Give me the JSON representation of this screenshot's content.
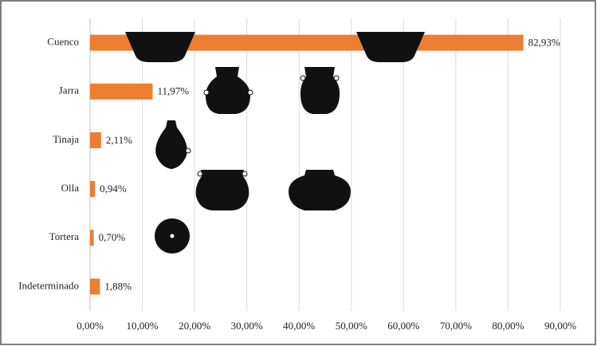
{
  "chart_data": {
    "type": "bar",
    "orientation": "horizontal",
    "categories": [
      "Cuenco",
      "Jarra",
      "Tinaja",
      "Olla",
      "Tortera",
      "Indeterminado"
    ],
    "values": [
      82.93,
      11.97,
      2.11,
      0.94,
      0.7,
      1.88
    ],
    "value_labels": [
      "82,93%",
      "11,97%",
      "2,11%",
      "0,94%",
      "0,70%",
      "1,88%"
    ],
    "color": "#ed7d31",
    "xlim": [
      0,
      90
    ],
    "xticks": [
      {
        "value": 0,
        "label": "0,00%"
      },
      {
        "value": 10,
        "label": "10,00%"
      },
      {
        "value": 20,
        "label": "20,00%"
      },
      {
        "value": 30,
        "label": "30,00%"
      },
      {
        "value": 40,
        "label": "40,00%"
      },
      {
        "value": 50,
        "label": "50,00%"
      },
      {
        "value": 60,
        "label": "60,00%"
      },
      {
        "value": 70,
        "label": "70,00%"
      },
      {
        "value": 80,
        "label": "80,00%"
      },
      {
        "value": 90,
        "label": "90,00%"
      }
    ],
    "grid": true
  }
}
